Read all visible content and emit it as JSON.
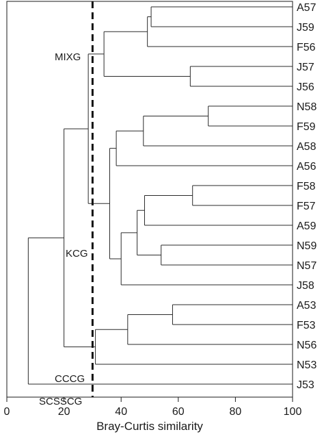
{
  "chart_data": {
    "type": "dendrogram",
    "xlabel": "Bray-Curtis similarity",
    "xlim": [
      0,
      100
    ],
    "xticks": [
      "0",
      "20",
      "40",
      "60",
      "80",
      "100"
    ],
    "cutoff": 30,
    "leaves": [
      "A57",
      "J59",
      "F56",
      "J57",
      "J56",
      "N58",
      "F59",
      "A58",
      "A56",
      "F58",
      "F57",
      "A59",
      "N59",
      "N57",
      "J58",
      "A53",
      "F53",
      "N56",
      "N53",
      "J53"
    ],
    "merges": [
      {
        "a": "A57",
        "b": "J59",
        "similarity": 50.5
      },
      {
        "a": "A57+J59",
        "b": "F56",
        "similarity": 49.2
      },
      {
        "a": "J57",
        "b": "J56",
        "similarity": 64.2
      },
      {
        "a": "A57+J59+F56",
        "b": "J57+J56",
        "similarity": 34
      },
      {
        "a": "N58",
        "b": "F59",
        "similarity": 70.5
      },
      {
        "a": "N58+F59",
        "b": "A58",
        "similarity": 47.8
      },
      {
        "a": "N58+F59+A58",
        "b": "A56",
        "similarity": 38.3
      },
      {
        "a": "F58",
        "b": "F57",
        "similarity": 65
      },
      {
        "a": "F58+F57",
        "b": "A59",
        "similarity": 48.2
      },
      {
        "a": "N59",
        "b": "N57",
        "similarity": 54
      },
      {
        "a": "F58+F57+A59",
        "b": "N59+N57",
        "similarity": 45.6
      },
      {
        "a": "F58+F57+A59+N59+N57",
        "b": "J58",
        "similarity": 40
      },
      {
        "a": "N58+F59+A58+A56",
        "b": "F58+F57+A59+N59+N57+J58",
        "similarity": 36
      },
      {
        "a": "MIXG",
        "b": "KCG",
        "similarity": 28.5
      },
      {
        "a": "A53",
        "b": "F53",
        "similarity": 58
      },
      {
        "a": "A53+F53",
        "b": "N56",
        "similarity": 42.3
      },
      {
        "a": "A53+F53+N56",
        "b": "N53",
        "similarity": 31
      },
      {
        "a": "MIXG+KCG",
        "b": "CCCG",
        "similarity": 20
      },
      {
        "a": "MIXG+KCG+CCCG",
        "b": "J53",
        "similarity": 7.5
      }
    ],
    "groups": [
      {
        "name": "MIXG",
        "members": [
          "A57",
          "J59",
          "F56",
          "J57",
          "J56"
        ]
      },
      {
        "name": "KCG",
        "members": [
          "N58",
          "F59",
          "A58",
          "A56",
          "F58",
          "F57",
          "A59",
          "N59",
          "N57",
          "J58"
        ]
      },
      {
        "name": "CCCG",
        "members": [
          "A53",
          "F53",
          "N56",
          "N53"
        ]
      },
      {
        "name": "SCSSCG",
        "members": [
          "J53"
        ]
      }
    ]
  }
}
